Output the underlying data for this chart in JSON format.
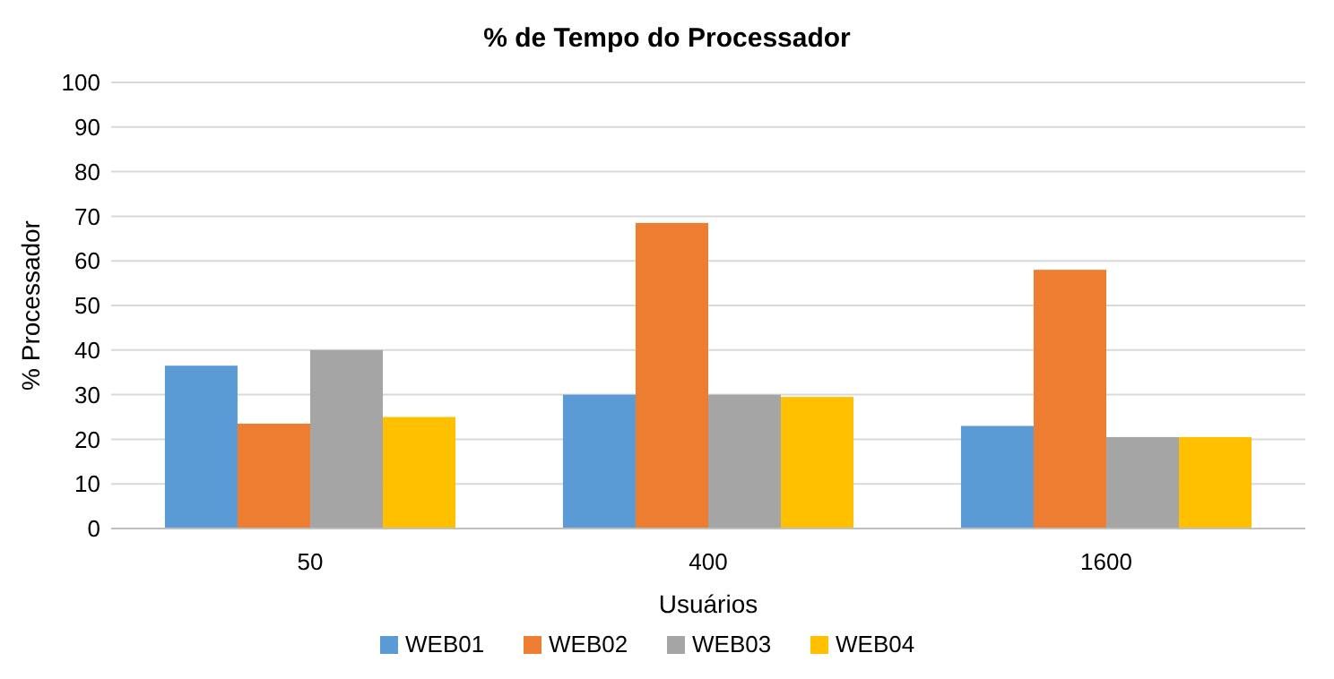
{
  "chart_data": {
    "type": "bar",
    "title": "% de Tempo do Processador",
    "xlabel": "Usuários",
    "ylabel": "% Processador",
    "categories": [
      "50",
      "400",
      "1600"
    ],
    "series": [
      {
        "name": "WEB01",
        "color": "#5b9bd5",
        "values": [
          36.5,
          30,
          23
        ]
      },
      {
        "name": "WEB02",
        "color": "#ed7d31",
        "values": [
          23.5,
          68.5,
          58
        ]
      },
      {
        "name": "WEB03",
        "color": "#a5a5a5",
        "values": [
          40,
          30,
          20.5
        ]
      },
      {
        "name": "WEB04",
        "color": "#ffc000",
        "values": [
          25,
          29.5,
          20.5
        ]
      }
    ],
    "ylim": [
      0,
      100
    ],
    "yticks": [
      0,
      10,
      20,
      30,
      40,
      50,
      60,
      70,
      80,
      90,
      100
    ],
    "grid": "y",
    "legend": "bottom"
  }
}
